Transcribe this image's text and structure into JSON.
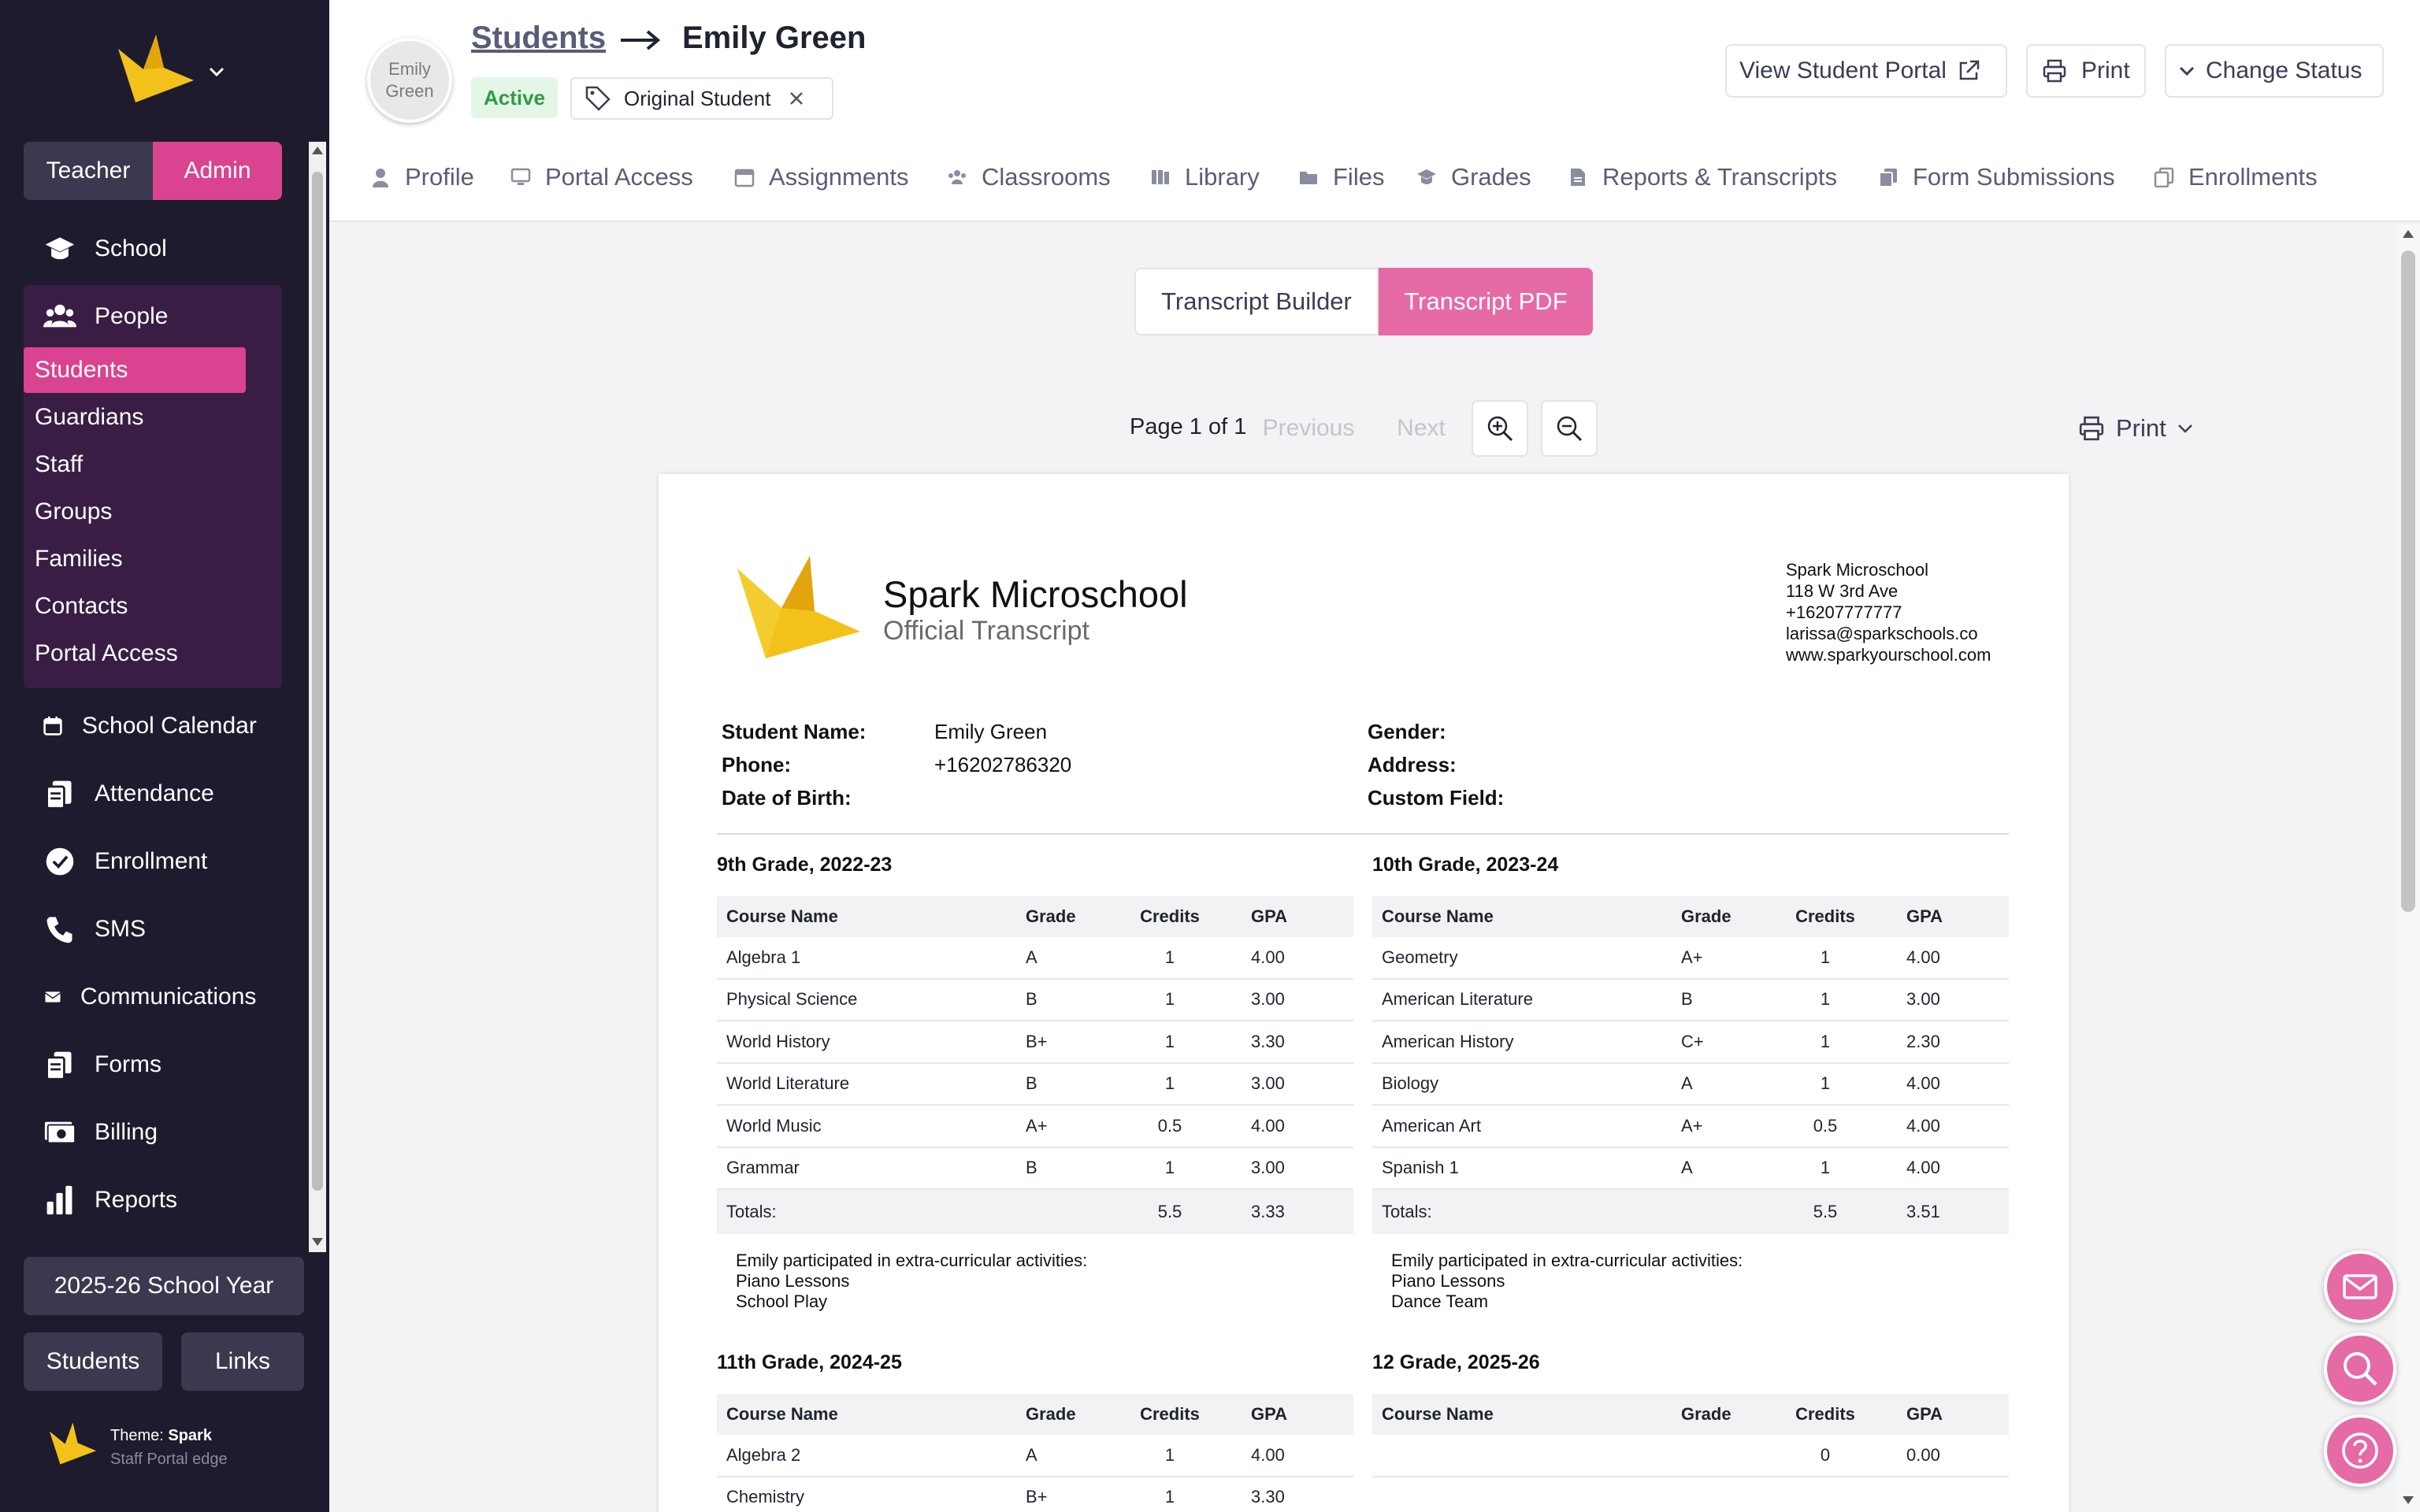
{
  "sidebar": {
    "role_teacher": "Teacher",
    "role_admin": "Admin",
    "nav": {
      "school": "School",
      "people": "People",
      "school_calendar": "School Calendar",
      "attendance": "Attendance",
      "enrollment": "Enrollment",
      "sms": "SMS",
      "communications": "Communications",
      "forms": "Forms",
      "billing": "Billing",
      "reports": "Reports"
    },
    "people_sub": [
      "Students",
      "Guardians",
      "Staff",
      "Groups",
      "Families",
      "Contacts",
      "Portal Access"
    ],
    "active_sub": "Students",
    "school_year": "2025-26 School Year",
    "btn_students": "Students",
    "btn_links": "Links",
    "theme_label": "Theme:",
    "theme_name": "Spark",
    "theme_sub": "Staff Portal edge",
    "colors": {
      "bg": "#1e1b2e",
      "accent": "#d9438f",
      "group_bg": "#3a1d45"
    }
  },
  "header": {
    "avatar_text": "Emily Green",
    "breadcrumb_parent": "Students",
    "breadcrumb_current": "Emily Green",
    "status_badge": "Active",
    "tag": "Original Student",
    "view_portal": "View Student Portal",
    "print": "Print",
    "change_status": "Change Status",
    "tabs": [
      "Profile",
      "Portal Access",
      "Assignments",
      "Classrooms",
      "Library",
      "Files",
      "Grades",
      "Reports & Transcripts",
      "Form Submissions",
      "Enrollments"
    ]
  },
  "main": {
    "seg_builder": "Transcript Builder",
    "seg_pdf": "Transcript PDF",
    "page_info": "Page 1 of 1",
    "previous": "Previous",
    "next": "Next",
    "pdf_print": "Print"
  },
  "transcript": {
    "school_name": "Spark Microschool",
    "doc_title": "Official Transcript",
    "address_lines": [
      "Spark Microschool",
      "118 W 3rd Ave",
      "+16207777777",
      "larissa@sparkschools.co",
      "www.sparkyourschool.com"
    ],
    "student_name_label": "Student Name:",
    "student_name": "Emily Green",
    "phone_label": "Phone:",
    "phone": "+16202786320",
    "dob_label": "Date of Birth:",
    "gender_label": "Gender:",
    "address_label": "Address:",
    "custom_label": "Custom Field:",
    "columns": [
      "Course Name",
      "Grade",
      "Credits",
      "GPA"
    ],
    "totals_label": "Totals:",
    "grades": [
      {
        "title": "9th Grade, 2022-23",
        "rows": [
          [
            "Algebra 1",
            "A",
            "1",
            "4.00"
          ],
          [
            "Physical Science",
            "B",
            "1",
            "3.00"
          ],
          [
            "World History",
            "B+",
            "1",
            "3.30"
          ],
          [
            "World Literature",
            "B",
            "1",
            "3.00"
          ],
          [
            "World Music",
            "A+",
            "0.5",
            "4.00"
          ],
          [
            "Grammar",
            "B",
            "1",
            "3.00"
          ]
        ],
        "total_credits": "5.5",
        "total_gpa": "3.33",
        "notes": [
          "Emily participated in extra-curricular activities:",
          "Piano Lessons",
          "School Play"
        ]
      },
      {
        "title": "10th Grade, 2023-24",
        "rows": [
          [
            "Geometry",
            "A+",
            "1",
            "4.00"
          ],
          [
            "American Literature",
            "B",
            "1",
            "3.00"
          ],
          [
            "American History",
            "C+",
            "1",
            "2.30"
          ],
          [
            "Biology",
            "A",
            "1",
            "4.00"
          ],
          [
            "American Art",
            "A+",
            "0.5",
            "4.00"
          ],
          [
            "Spanish 1",
            "A",
            "1",
            "4.00"
          ]
        ],
        "total_credits": "5.5",
        "total_gpa": "3.51",
        "notes": [
          "Emily participated in extra-curricular activities:",
          "Piano Lessons",
          "Dance Team"
        ]
      },
      {
        "title": "11th Grade, 2024-25",
        "rows": [
          [
            "Algebra 2",
            "A",
            "1",
            "4.00"
          ],
          [
            "Chemistry",
            "B+",
            "1",
            "3.30"
          ]
        ]
      },
      {
        "title": "12 Grade, 2025-26",
        "rows": [
          [
            "",
            "",
            "0",
            "0.00"
          ]
        ]
      }
    ]
  }
}
